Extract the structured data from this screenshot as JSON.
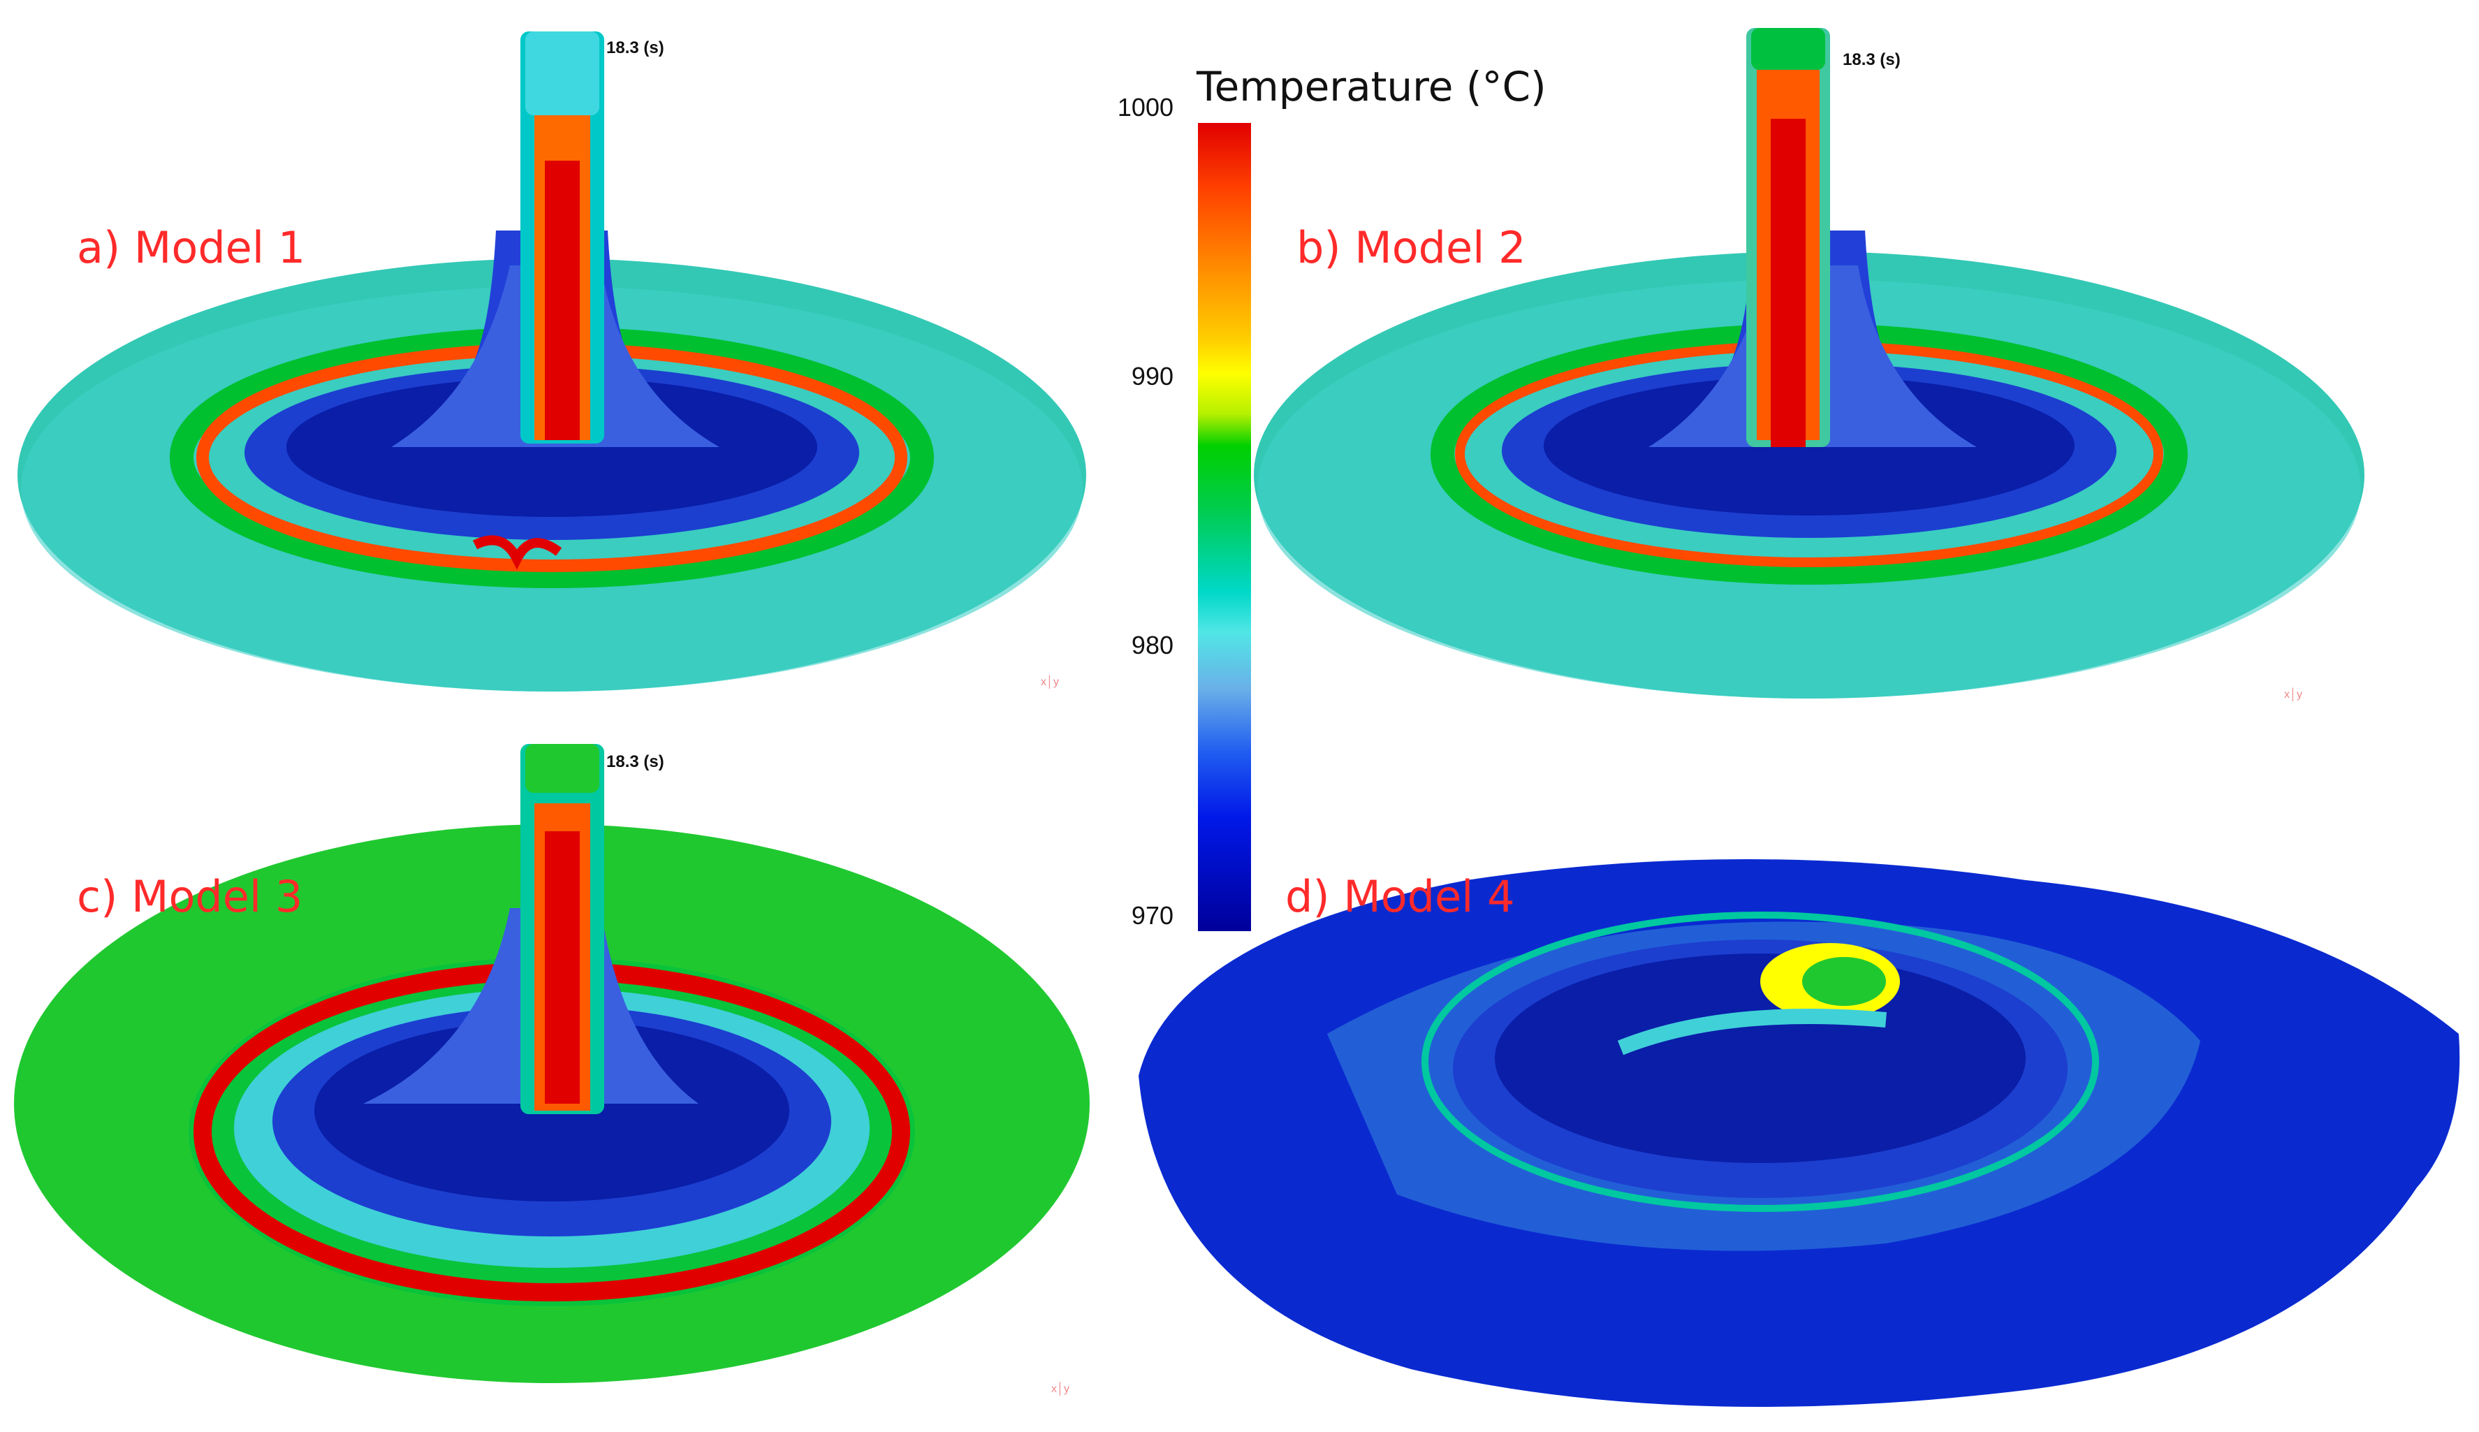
{
  "panels": [
    {
      "label": "a) Model 1",
      "time": "18.3 (s)"
    },
    {
      "label": "b) Model 2",
      "time": "18.3 (s)"
    },
    {
      "label": "c) Model 3",
      "time": "18.3 (s)"
    },
    {
      "label": "d) Model 4"
    }
  ],
  "legend": {
    "title": "Temperature (°C)",
    "ticks": [
      "1000",
      "990",
      "980",
      "970"
    ]
  },
  "axis_marker": "x│y",
  "colors": {
    "label_red": "#ff2a2a",
    "hot": "#e10000",
    "warm": "#ffd000",
    "mid": "#00d000",
    "cool": "#00d8c8",
    "cold": "#0018e8",
    "coldest": "#00009a"
  }
}
